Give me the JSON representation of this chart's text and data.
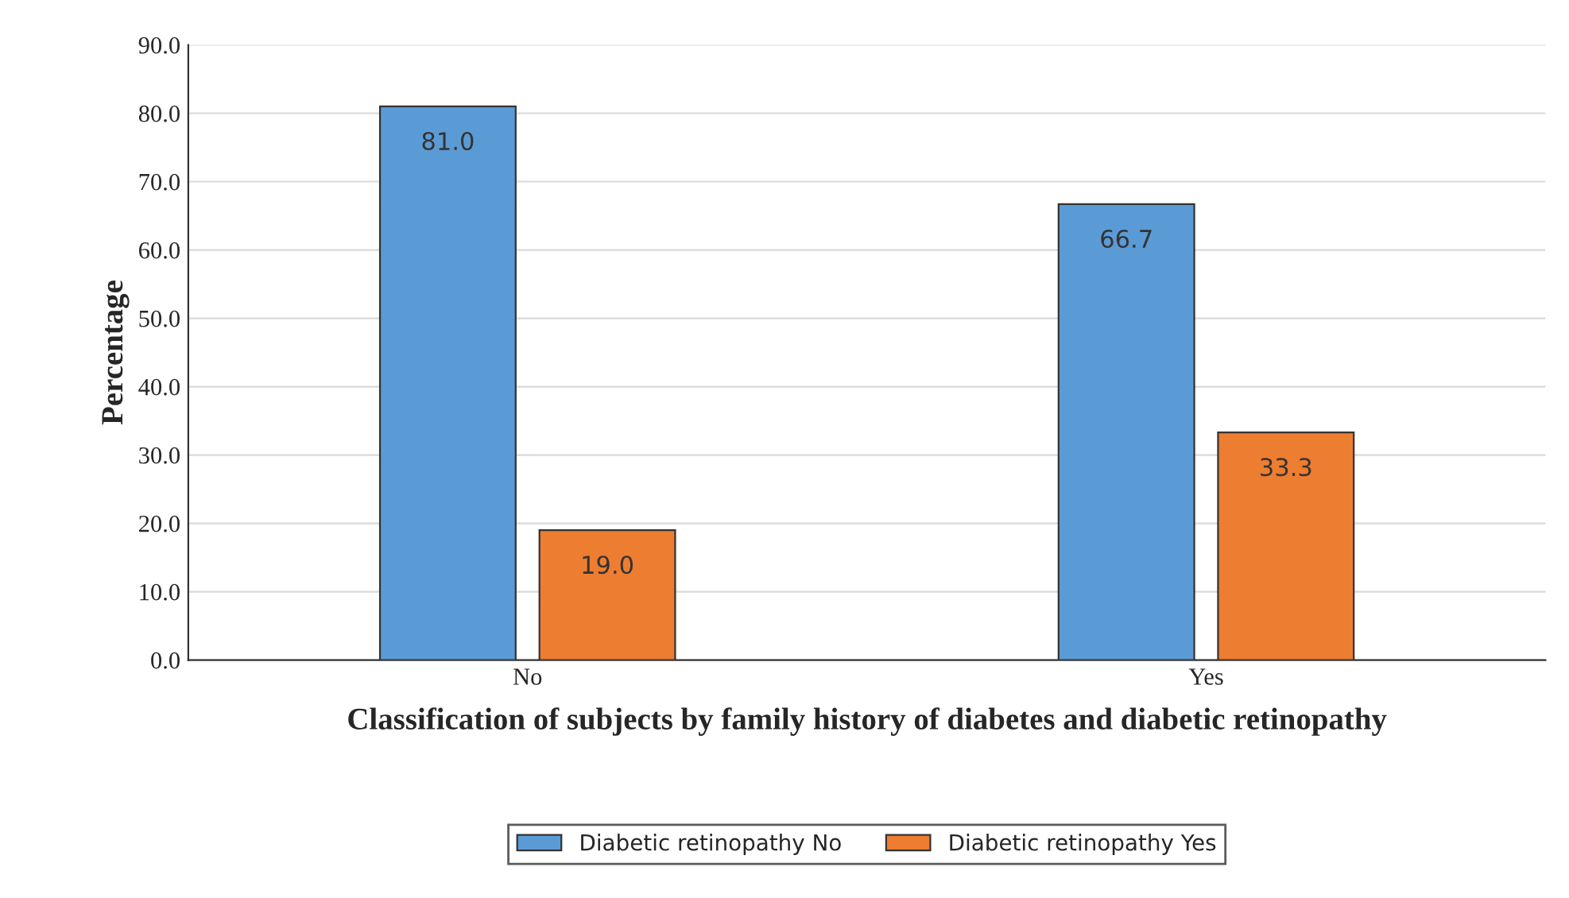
{
  "chart_data": {
    "type": "bar",
    "xlabel": "Classification of subjects by family history of diabetes and diabetic retinopathy",
    "ylabel": "Percentage",
    "categories": [
      "No",
      "Yes"
    ],
    "series": [
      {
        "name": "Diabetic retinopathy No",
        "color": "#5b9bd5",
        "values": [
          81.0,
          66.7
        ],
        "value_labels": [
          "81.0",
          "66.7"
        ]
      },
      {
        "name": "Diabetic retinopathy Yes",
        "color": "#ed7d31",
        "values": [
          19.0,
          33.3
        ],
        "value_labels": [
          "19.0",
          "33.3"
        ]
      }
    ],
    "ylim": [
      0,
      90
    ],
    "yticks": [
      {
        "value": 0,
        "label": "0.0"
      },
      {
        "value": 10,
        "label": "10.0"
      },
      {
        "value": 20,
        "label": "20.0"
      },
      {
        "value": 30,
        "label": "30.0"
      },
      {
        "value": 40,
        "label": "40.0"
      },
      {
        "value": 50,
        "label": "50.0"
      },
      {
        "value": 60,
        "label": "60.0"
      },
      {
        "value": 70,
        "label": "70.0"
      },
      {
        "value": 80,
        "label": "80.0"
      },
      {
        "value": 90,
        "label": "90.0"
      }
    ],
    "grid": "y",
    "legend": "bottom"
  }
}
